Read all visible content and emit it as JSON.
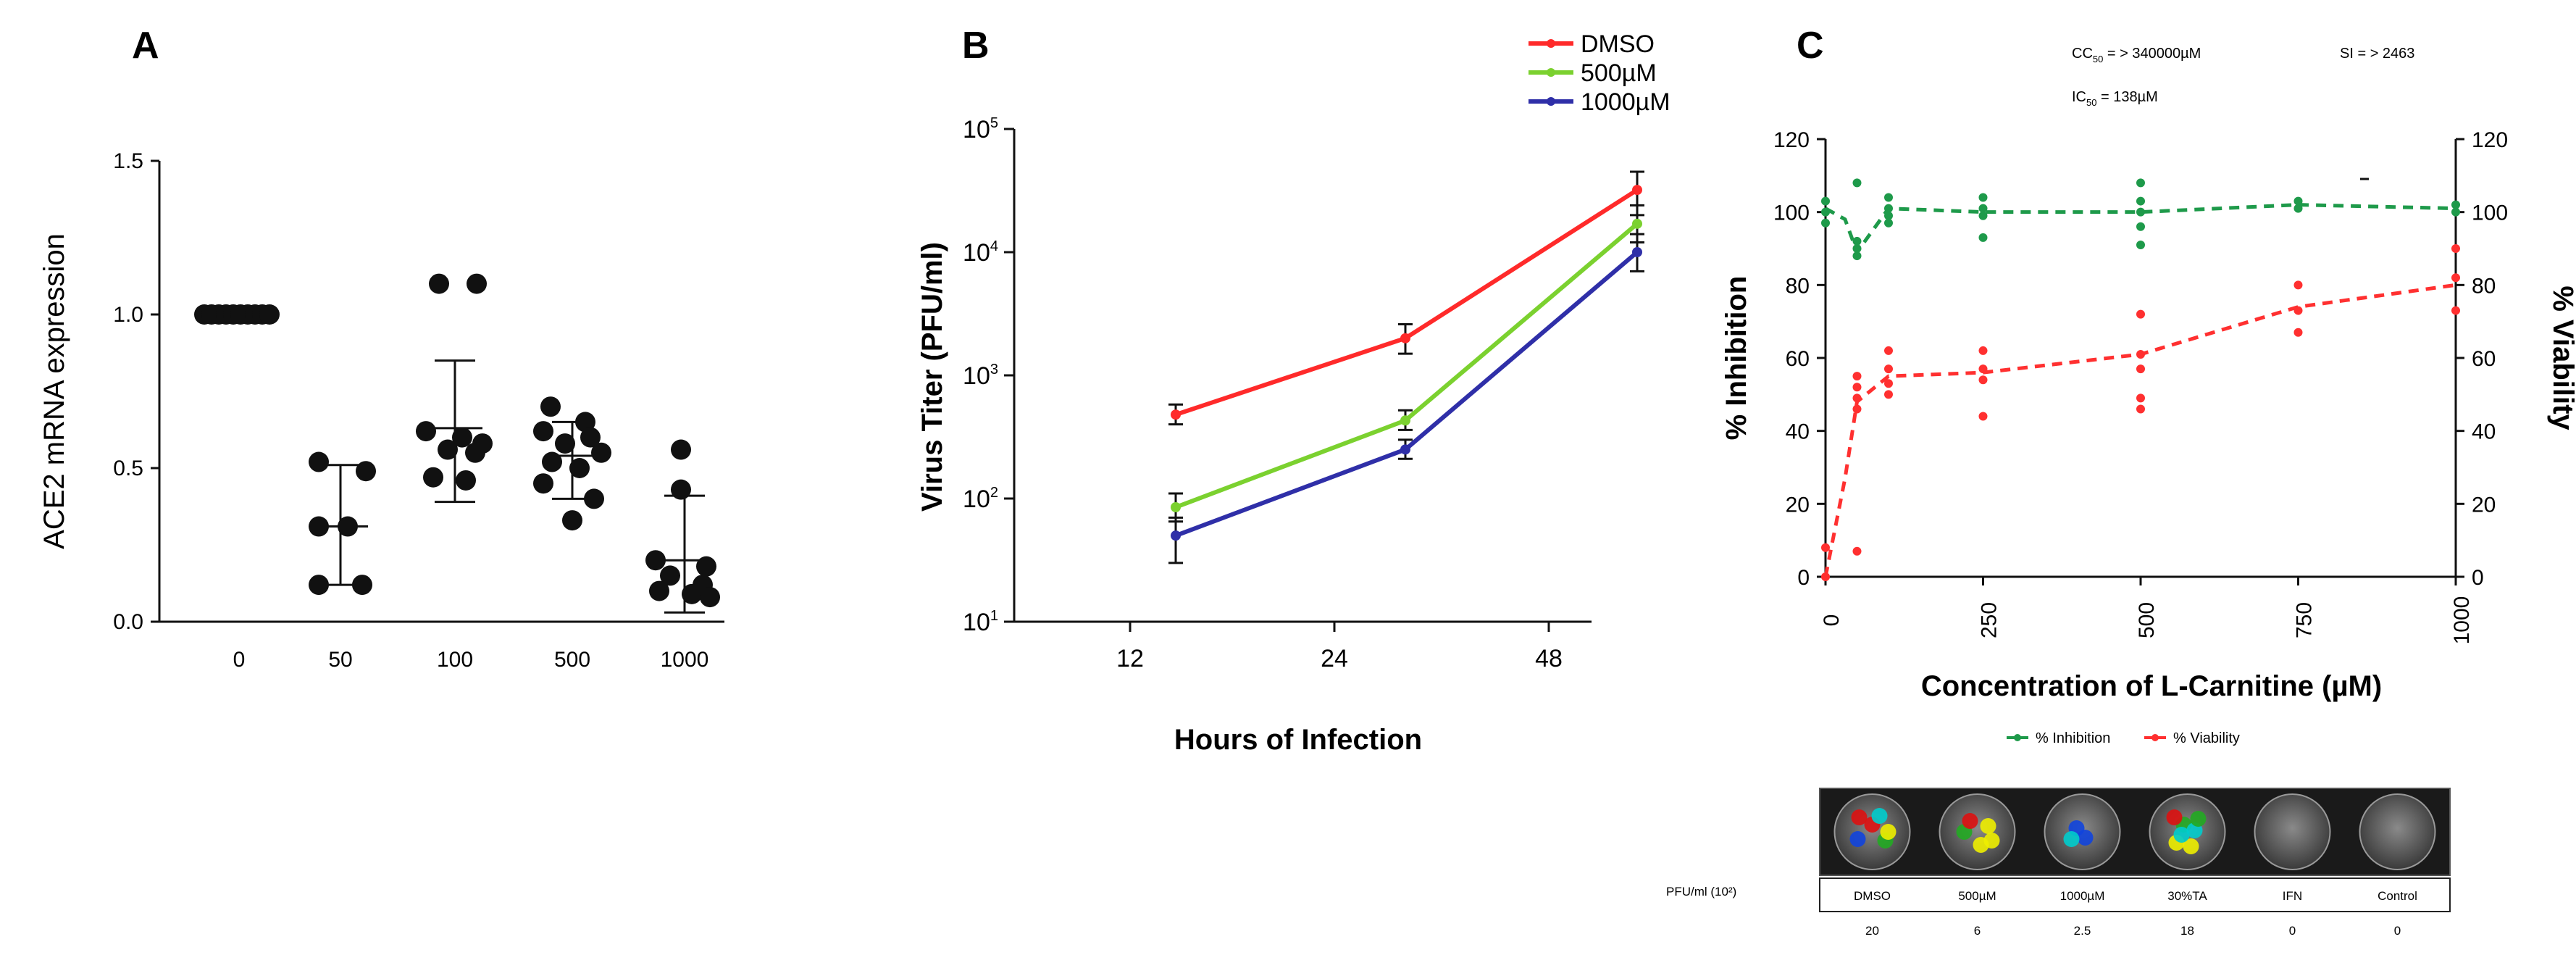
{
  "chart_data": [
    {
      "panel": "A",
      "type": "scatter",
      "title": "",
      "xlabel": "",
      "ylabel": "ACE2 mRNA expression",
      "categories": [
        "0",
        "50",
        "100",
        "500",
        "1000"
      ],
      "ylim": [
        0.0,
        1.5
      ],
      "yticks": [
        "0.0",
        "0.5",
        "1.0",
        "1.5"
      ],
      "points": [
        [
          1.0,
          1.0,
          1.0,
          1.0,
          1.0,
          1.0,
          1.0,
          1.0,
          1.0,
          1.0
        ],
        [
          0.52,
          0.49,
          0.31,
          0.31,
          0.12,
          0.12
        ],
        [
          1.1,
          1.1,
          0.62,
          0.6,
          0.58,
          0.56,
          0.55,
          0.47,
          0.46
        ],
        [
          0.7,
          0.65,
          0.62,
          0.6,
          0.58,
          0.55,
          0.52,
          0.5,
          0.45,
          0.4,
          0.33
        ],
        [
          0.56,
          0.43,
          0.2,
          0.18,
          0.15,
          0.12,
          0.1,
          0.09,
          0.08
        ]
      ],
      "means": [
        1.0,
        0.31,
        0.63,
        0.54,
        0.2
      ],
      "sd": [
        [
          1.0,
          1.0
        ],
        [
          0.12,
          0.51
        ],
        [
          0.39,
          0.85
        ],
        [
          0.4,
          0.65
        ],
        [
          0.03,
          0.41
        ]
      ]
    },
    {
      "panel": "B",
      "type": "line",
      "title": "",
      "xlabel": "Hours of Infection",
      "ylabel": "Virus Titer (PFU/ml)",
      "y_scale": "log",
      "ylim": [
        10,
        100000
      ],
      "y_tick_values": [
        10,
        100,
        1000,
        10000,
        100000
      ],
      "y_tick_labels": [
        {
          "base": "10",
          "exp": "1"
        },
        {
          "base": "10",
          "exp": "2"
        },
        {
          "base": "10",
          "exp": "3"
        },
        {
          "base": "10",
          "exp": "4"
        },
        {
          "base": "10",
          "exp": "5"
        }
      ],
      "x_ticks": [
        "12",
        "24",
        "48"
      ],
      "x_positions": [
        0.32,
        1.32,
        2.32
      ],
      "series": [
        {
          "name": "DMSO",
          "color": "#ff2a2a",
          "x": [
            0,
            1,
            2
          ],
          "values": [
            480,
            2000,
            32000
          ],
          "err_low": [
            400,
            1500,
            20000
          ],
          "err_high": [
            580,
            2600,
            45000
          ]
        },
        {
          "name": "500µM",
          "color": "#7bd12f",
          "x": [
            0,
            1,
            2
          ],
          "values": [
            85,
            430,
            17000
          ],
          "err_low": [
            65,
            360,
            12000
          ],
          "err_high": [
            110,
            520,
            24000
          ]
        },
        {
          "name": "1000µM",
          "color": "#2f2fa8",
          "x": [
            0,
            1,
            2
          ],
          "values": [
            50,
            250,
            10000
          ],
          "err_low": [
            30,
            210,
            7000
          ],
          "err_high": [
            70,
            300,
            14000
          ]
        }
      ]
    },
    {
      "panel": "C",
      "type": "scatter",
      "title": "",
      "xlabel": "Concentration of L-Carnitine (µM)",
      "ylabel_left": "% Inhibition",
      "ylabel_right": "% Viability",
      "xlim": [
        0,
        1000
      ],
      "xticks": [
        "0",
        "250",
        "500",
        "750",
        "1000"
      ],
      "ylim": [
        0,
        120
      ],
      "yticks": [
        "0",
        "20",
        "40",
        "60",
        "80",
        "100",
        "120"
      ],
      "annotations": {
        "cc50_prefix": "CC",
        "cc50_sub": "50",
        "cc50_value": " = > 340000µM",
        "ic50_prefix": "IC",
        "ic50_sub": "50",
        "ic50_value": " = 138µM",
        "si": "SI = > 2463"
      },
      "series": [
        {
          "name": "% Inhibition",
          "color": "#1e9a4a",
          "x_mean": [
            0,
            31,
            50,
            100,
            250,
            500,
            750,
            1000
          ],
          "y_mean": [
            101,
            98,
            89,
            101,
            100,
            100,
            102,
            101
          ],
          "points_x": [
            0,
            0,
            0,
            50,
            50,
            50,
            50,
            100,
            100,
            100,
            100,
            250,
            250,
            250,
            250,
            500,
            500,
            500,
            500,
            500,
            750,
            750,
            1000,
            1000
          ],
          "points_y": [
            103,
            100,
            97,
            108,
            92,
            90,
            88,
            104,
            101,
            99,
            97,
            104,
            101,
            99,
            93,
            108,
            103,
            100,
            96,
            91,
            103,
            101,
            102,
            100
          ]
        },
        {
          "name": "% Viability",
          "color": "#ff3030",
          "x_mean": [
            0,
            31,
            50,
            100,
            250,
            500,
            750,
            1000
          ],
          "y_mean": [
            0,
            27,
            48,
            55,
            56,
            61,
            74,
            80
          ],
          "points_x": [
            0,
            0,
            50,
            50,
            50,
            50,
            50,
            100,
            100,
            100,
            100,
            250,
            250,
            250,
            250,
            500,
            500,
            500,
            500,
            500,
            750,
            750,
            750,
            1000,
            1000,
            1000
          ],
          "points_y": [
            0,
            8,
            55,
            52,
            49,
            46,
            7,
            62,
            57,
            53,
            50,
            62,
            57,
            54,
            44,
            72,
            61,
            57,
            49,
            46,
            80,
            73,
            67,
            90,
            82,
            73
          ]
        }
      ]
    },
    {
      "panel": "C-inset",
      "type": "table",
      "columns": [
        "DMSO",
        "500µM",
        "1000µM",
        "30%TA",
        "IFN",
        "Control"
      ],
      "row_label": "PFU/ml (10²)",
      "values": [
        "20",
        "6",
        "2.5",
        "18",
        "0",
        "0"
      ]
    }
  ]
}
